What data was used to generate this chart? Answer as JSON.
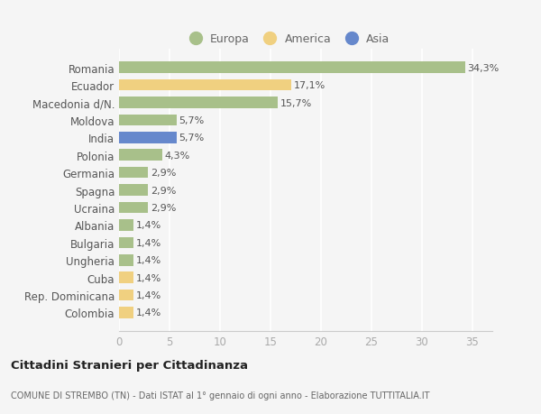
{
  "countries": [
    "Romania",
    "Ecuador",
    "Macedonia d/N.",
    "Moldova",
    "India",
    "Polonia",
    "Germania",
    "Spagna",
    "Ucraina",
    "Albania",
    "Bulgaria",
    "Ungheria",
    "Cuba",
    "Rep. Dominicana",
    "Colombia"
  ],
  "values": [
    34.3,
    17.1,
    15.7,
    5.7,
    5.7,
    4.3,
    2.9,
    2.9,
    2.9,
    1.4,
    1.4,
    1.4,
    1.4,
    1.4,
    1.4
  ],
  "labels": [
    "34,3%",
    "17,1%",
    "15,7%",
    "5,7%",
    "5,7%",
    "4,3%",
    "2,9%",
    "2,9%",
    "2,9%",
    "1,4%",
    "1,4%",
    "1,4%",
    "1,4%",
    "1,4%",
    "1,4%"
  ],
  "continents": [
    "Europa",
    "America",
    "Europa",
    "Europa",
    "Asia",
    "Europa",
    "Europa",
    "Europa",
    "Europa",
    "Europa",
    "Europa",
    "Europa",
    "America",
    "America",
    "America"
  ],
  "colors": {
    "Europa": "#a8c08a",
    "America": "#f0d080",
    "Asia": "#6688cc"
  },
  "bg_color": "#f5f5f5",
  "plot_bg": "#ffffff",
  "grid_color": "#ffffff",
  "title1": "Cittadini Stranieri per Cittadinanza",
  "title2": "COMUNE DI STREMBO (TN) - Dati ISTAT al 1° gennaio di ogni anno - Elaborazione TUTTITALIA.IT",
  "xlim": [
    0,
    37
  ],
  "xticks": [
    0,
    5,
    10,
    15,
    20,
    25,
    30,
    35
  ],
  "label_fontsize": 8.0,
  "ytick_fontsize": 8.5,
  "xtick_fontsize": 8.5
}
